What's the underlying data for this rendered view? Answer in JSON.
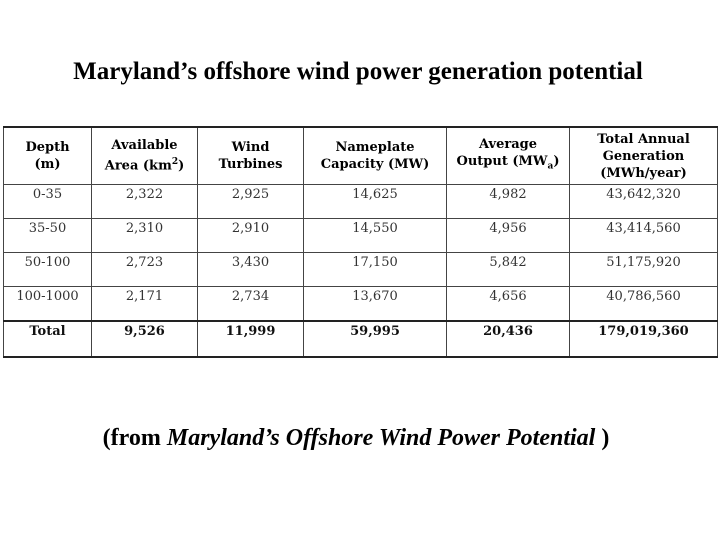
{
  "title": "Maryland’s offshore wind power generation potential",
  "table": {
    "headers": [
      {
        "line1": "Depth",
        "line2": "(m)"
      },
      {
        "line1": "Available",
        "line2": "Area (km",
        "sup": "2",
        "tail": ")"
      },
      {
        "line1": "Wind",
        "line2": "Turbines"
      },
      {
        "line1": "Nameplate",
        "line2": "Capacity (MW)"
      },
      {
        "line1": "Average",
        "line2": "Output (MW",
        "sub": "a",
        "tail": ")"
      },
      {
        "line1": "Total Annual",
        "line2": "Generation",
        "line3": "(MWh/year)"
      }
    ],
    "rows": [
      [
        "0-35",
        "2,322",
        "2,925",
        "14,625",
        "4,982",
        "43,642,320"
      ],
      [
        "35-50",
        "2,310",
        "2,910",
        "14,550",
        "4,956",
        "43,414,560"
      ],
      [
        "50-100",
        "2,723",
        "3,430",
        "17,150",
        "5,842",
        "51,175,920"
      ],
      [
        "100-1000",
        "2,171",
        "2,734",
        "13,670",
        "4,656",
        "40,786,560"
      ]
    ],
    "total": [
      "Total",
      "9,526",
      "11,999",
      "59,995",
      "20,436",
      "179,019,360"
    ]
  },
  "source": {
    "prefix": "(from ",
    "italic": "Maryland’s Offshore Wind Power Potential",
    "suffix": " )"
  }
}
